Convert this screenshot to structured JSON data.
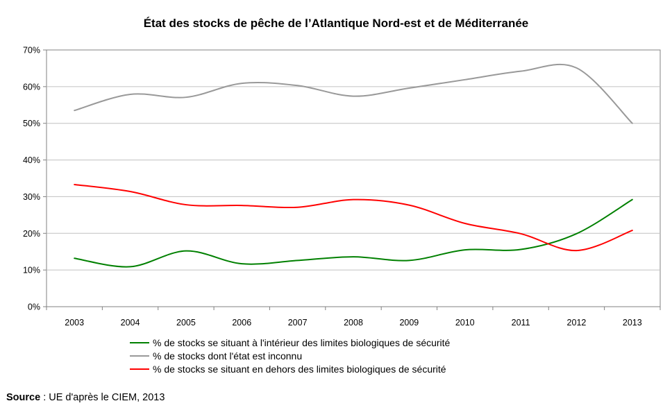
{
  "chart_data": {
    "type": "line",
    "title": "État des stocks de pêche de l’Atlantique Nord-est et de Méditerranée",
    "categories": [
      "2003",
      "2004",
      "2005",
      "2006",
      "2007",
      "2008",
      "2009",
      "2010",
      "2011",
      "2012",
      "2013"
    ],
    "y_ticks": [
      "0%",
      "10%",
      "20%",
      "30%",
      "40%",
      "50%",
      "60%",
      "70%"
    ],
    "ylim": [
      0,
      70
    ],
    "grid": true,
    "legend_position": "bottom",
    "series": [
      {
        "name": "% de stocks se situant à l'intérieur des limites biologiques de sécurité",
        "color": "#008000",
        "values": [
          13.2,
          10.9,
          15.2,
          11.7,
          12.6,
          13.6,
          12.6,
          15.5,
          15.6,
          19.9,
          29.2
        ]
      },
      {
        "name": "% de stocks dont l'état est inconnu",
        "color": "#999999",
        "values": [
          53.5,
          57.9,
          57.1,
          60.9,
          60.3,
          57.4,
          59.6,
          61.9,
          64.2,
          65.1,
          50.0
        ]
      },
      {
        "name": "% de stocks se situant en dehors des limites biologiques de sécurité",
        "color": "#ff0000",
        "values": [
          33.3,
          31.4,
          27.8,
          27.6,
          27.1,
          29.2,
          27.7,
          22.7,
          19.9,
          15.3,
          20.8
        ]
      }
    ]
  },
  "source": {
    "label": "Source",
    "text": " : UE d'après le CIEM, 2013"
  }
}
